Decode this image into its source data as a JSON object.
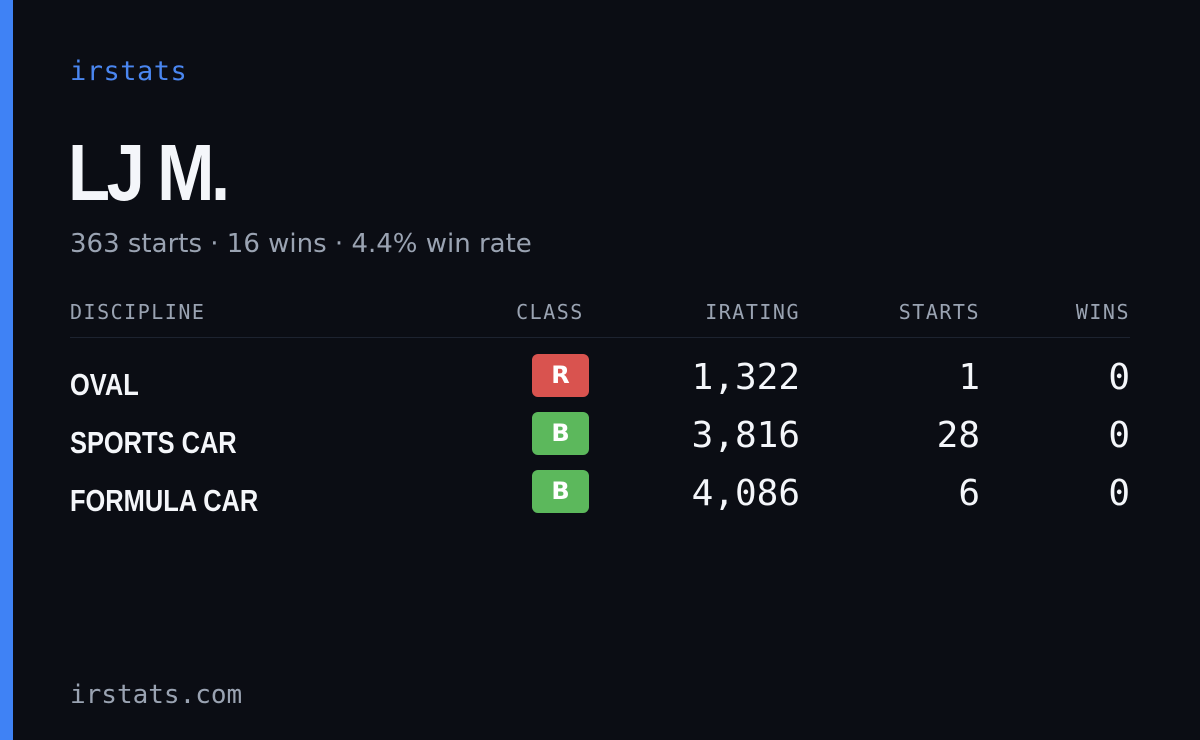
{
  "brand": {
    "logo_text": "irstats",
    "accent_color": "#3f82f5"
  },
  "player": {
    "name": "LJ M.",
    "summary": "363 starts · 16 wins · 4.4% win rate"
  },
  "table": {
    "headers": {
      "discipline": "DISCIPLINE",
      "class": "CLASS",
      "irating": "IRATING",
      "starts": "STARTS",
      "wins": "WINS"
    },
    "rows": [
      {
        "discipline": "OVAL",
        "class": "R",
        "class_color": "#d9534f",
        "irating": "1,322",
        "starts": "1",
        "wins": "0"
      },
      {
        "discipline": "SPORTS CAR",
        "class": "B",
        "class_color": "#5cb85c",
        "irating": "3,816",
        "starts": "28",
        "wins": "0"
      },
      {
        "discipline": "FORMULA CAR",
        "class": "B",
        "class_color": "#5cb85c",
        "irating": "4,086",
        "starts": "6",
        "wins": "0"
      }
    ]
  },
  "footer": {
    "domain": "irstats.com"
  }
}
